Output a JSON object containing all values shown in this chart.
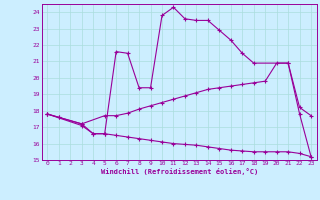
{
  "xlabel": "Windchill (Refroidissement éolien,°C)",
  "bg_color": "#cceeff",
  "line_color": "#990099",
  "grid_color": "#aadddd",
  "xlim": [
    -0.5,
    23.5
  ],
  "ylim": [
    15.0,
    24.5
  ],
  "yticks": [
    15,
    16,
    17,
    18,
    19,
    20,
    21,
    22,
    23,
    24
  ],
  "xticks": [
    0,
    1,
    2,
    3,
    4,
    5,
    6,
    7,
    8,
    9,
    10,
    11,
    12,
    13,
    14,
    15,
    16,
    17,
    18,
    19,
    20,
    21,
    22,
    23
  ],
  "curve1_x": [
    0,
    1,
    3,
    4,
    5,
    6,
    7,
    8,
    9,
    10,
    11,
    12,
    13,
    14,
    15,
    16,
    17,
    18,
    21,
    22,
    23
  ],
  "curve1_y": [
    17.8,
    17.6,
    17.2,
    16.6,
    16.6,
    21.6,
    21.5,
    19.4,
    19.4,
    23.8,
    24.3,
    23.6,
    23.5,
    23.5,
    22.9,
    22.3,
    21.5,
    20.9,
    20.9,
    17.8,
    15.2
  ],
  "curve2_x": [
    0,
    1,
    3,
    5,
    6,
    7,
    8,
    9,
    10,
    11,
    12,
    13,
    14,
    15,
    16,
    17,
    18,
    19,
    20,
    21,
    22,
    23
  ],
  "curve2_y": [
    17.8,
    17.6,
    17.2,
    17.7,
    17.7,
    17.85,
    18.1,
    18.3,
    18.5,
    18.7,
    18.9,
    19.1,
    19.3,
    19.4,
    19.5,
    19.6,
    19.7,
    19.8,
    20.9,
    20.9,
    18.2,
    17.7
  ],
  "curve3_x": [
    0,
    3,
    4,
    5,
    6,
    7,
    8,
    9,
    10,
    11,
    12,
    13,
    14,
    15,
    16,
    17,
    18,
    19,
    20,
    21,
    22,
    23
  ],
  "curve3_y": [
    17.8,
    17.1,
    16.6,
    16.6,
    16.5,
    16.4,
    16.3,
    16.2,
    16.1,
    16.0,
    15.95,
    15.9,
    15.8,
    15.7,
    15.6,
    15.55,
    15.5,
    15.5,
    15.5,
    15.5,
    15.4,
    15.2
  ]
}
